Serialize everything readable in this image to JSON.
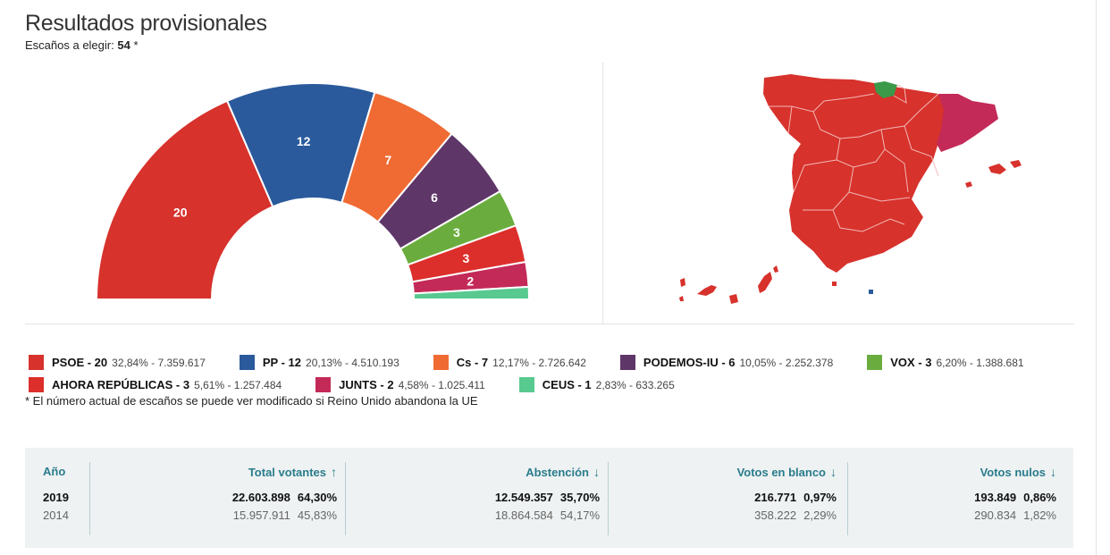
{
  "title": "Resultados provisionales",
  "subtitle": {
    "label": "Escaños a elegir:",
    "value": "54",
    "mark": "*"
  },
  "chart_data": {
    "type": "hemicycle",
    "title": "Resultados provisionales",
    "total_seats": 54,
    "series": [
      {
        "name": "PSOE",
        "seats": 20,
        "color": "#d7322c"
      },
      {
        "name": "PP",
        "seats": 12,
        "color": "#2a5a9c"
      },
      {
        "name": "Cs",
        "seats": 7,
        "color": "#ef6b33"
      },
      {
        "name": "PODEMOS-IU",
        "seats": 6,
        "color": "#5e3668"
      },
      {
        "name": "VOX",
        "seats": 3,
        "color": "#6aad3e"
      },
      {
        "name": "AHORA REPÚBLICAS",
        "seats": 3,
        "color": "#dc2f2b"
      },
      {
        "name": "JUNTS",
        "seats": 2,
        "color": "#c32a58"
      },
      {
        "name": "CEUS",
        "seats": 1,
        "color": "#58c98f"
      }
    ]
  },
  "map": {
    "region_colors": {
      "main": "#d7322c",
      "catalonia": "#c32a58",
      "basque": "#3a9a49",
      "ceuta_melilla": "#2a5a9c"
    }
  },
  "legend": [
    {
      "label": "PSOE - 20",
      "stats": "32,84% - 7.359.617",
      "color": "#d7322c"
    },
    {
      "label": "PP - 12",
      "stats": "20,13% - 4.510.193",
      "color": "#2a5a9c"
    },
    {
      "label": "Cs - 7",
      "stats": "12,17% - 2.726.642",
      "color": "#ef6b33"
    },
    {
      "label": "PODEMOS-IU - 6",
      "stats": "10,05% - 2.252.378",
      "color": "#5e3668"
    },
    {
      "label": "VOX - 3",
      "stats": "6,20% - 1.388.681",
      "color": "#6aad3e"
    },
    {
      "label": "AHORA REPÚBLICAS - 3",
      "stats": "5,61% - 1.257.484",
      "color": "#dc2f2b"
    },
    {
      "label": "JUNTS - 2",
      "stats": "4,58% - 1.025.411",
      "color": "#c32a58"
    },
    {
      "label": "CEUS - 1",
      "stats": "2,83% - 633.265",
      "color": "#58c98f"
    }
  ],
  "footnote": "* El número actual de escaños se puede ver modificado si Reino Unido abandona la UE",
  "table": {
    "headers": {
      "year": "Año",
      "voters": "Total votantes",
      "abstention": "Abstención",
      "blank": "Votos en blanco",
      "null": "Votos nulos"
    },
    "arrows": {
      "voters": "↑",
      "abstention": "↓",
      "blank": "↓",
      "null": "↓"
    },
    "rows": [
      {
        "year": "2019",
        "voters": "22.603.898",
        "voters_pct": "64,30%",
        "abstention": "12.549.357",
        "abstention_pct": "35,70%",
        "blank": "216.771",
        "blank_pct": "0,97%",
        "null": "193.849",
        "null_pct": "0,86%"
      },
      {
        "year": "2014",
        "voters": "15.957.911",
        "voters_pct": "45,83%",
        "abstention": "18.864.584",
        "abstention_pct": "54,17%",
        "blank": "358.222",
        "blank_pct": "2,29%",
        "null": "290.834",
        "null_pct": "1,82%"
      }
    ]
  }
}
